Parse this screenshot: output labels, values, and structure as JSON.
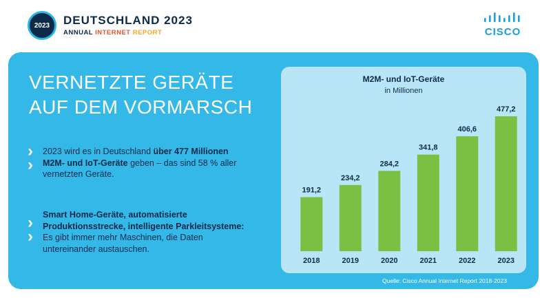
{
  "header": {
    "badge_year": "2023",
    "title": "DEUTSCHLAND 2023",
    "subtitle_part1": "ANNUAL ",
    "subtitle_part2": "INTERNET ",
    "subtitle_part3": "REPORT",
    "brand": "CISCO",
    "colors": {
      "navy": "#0d2a48",
      "orange": "#e8542a",
      "amber": "#f5a623",
      "cisco_blue": "#1ba0d7"
    }
  },
  "panel": {
    "headline_line1": "VERNETZTE GERÄTE",
    "headline_line2": "AUF DEM VORMARSCH",
    "arrow_glyph": "›",
    "para1": {
      "a": "2023 wird es in Deutschland ",
      "b": "über 477 Millionen M2M- und IoT-Geräte",
      "c": " geben – das sind 58 % aller vernetzten Geräte."
    },
    "para2": {
      "bold": "Smart Home-Geräte, automatisierte Produktionsstrecke, intelligente Parkleitsysteme:",
      "normal": " Es gibt immer mehr Maschinen, die Daten untereinander austauschen."
    },
    "source": "Quelle: Cisco Annual Internet Report 2018-2023",
    "colors": {
      "panel": "#33b8e8",
      "chart_bg": "#b8e6f7"
    }
  },
  "chart_data": {
    "type": "bar",
    "title": "M2M- und IoT-Geräte",
    "subtitle": "in Millionen",
    "categories": [
      "2018",
      "2019",
      "2020",
      "2021",
      "2022",
      "2023"
    ],
    "values": [
      191.2,
      234.2,
      284.2,
      341.8,
      406.6,
      477.2
    ],
    "value_labels": [
      "191,2",
      "234,2",
      "284,2",
      "341,8",
      "406,6",
      "477,2"
    ],
    "ylim": [
      0,
      477.2
    ],
    "grid": false,
    "legend": "none",
    "bar_color": "#7ac043"
  }
}
